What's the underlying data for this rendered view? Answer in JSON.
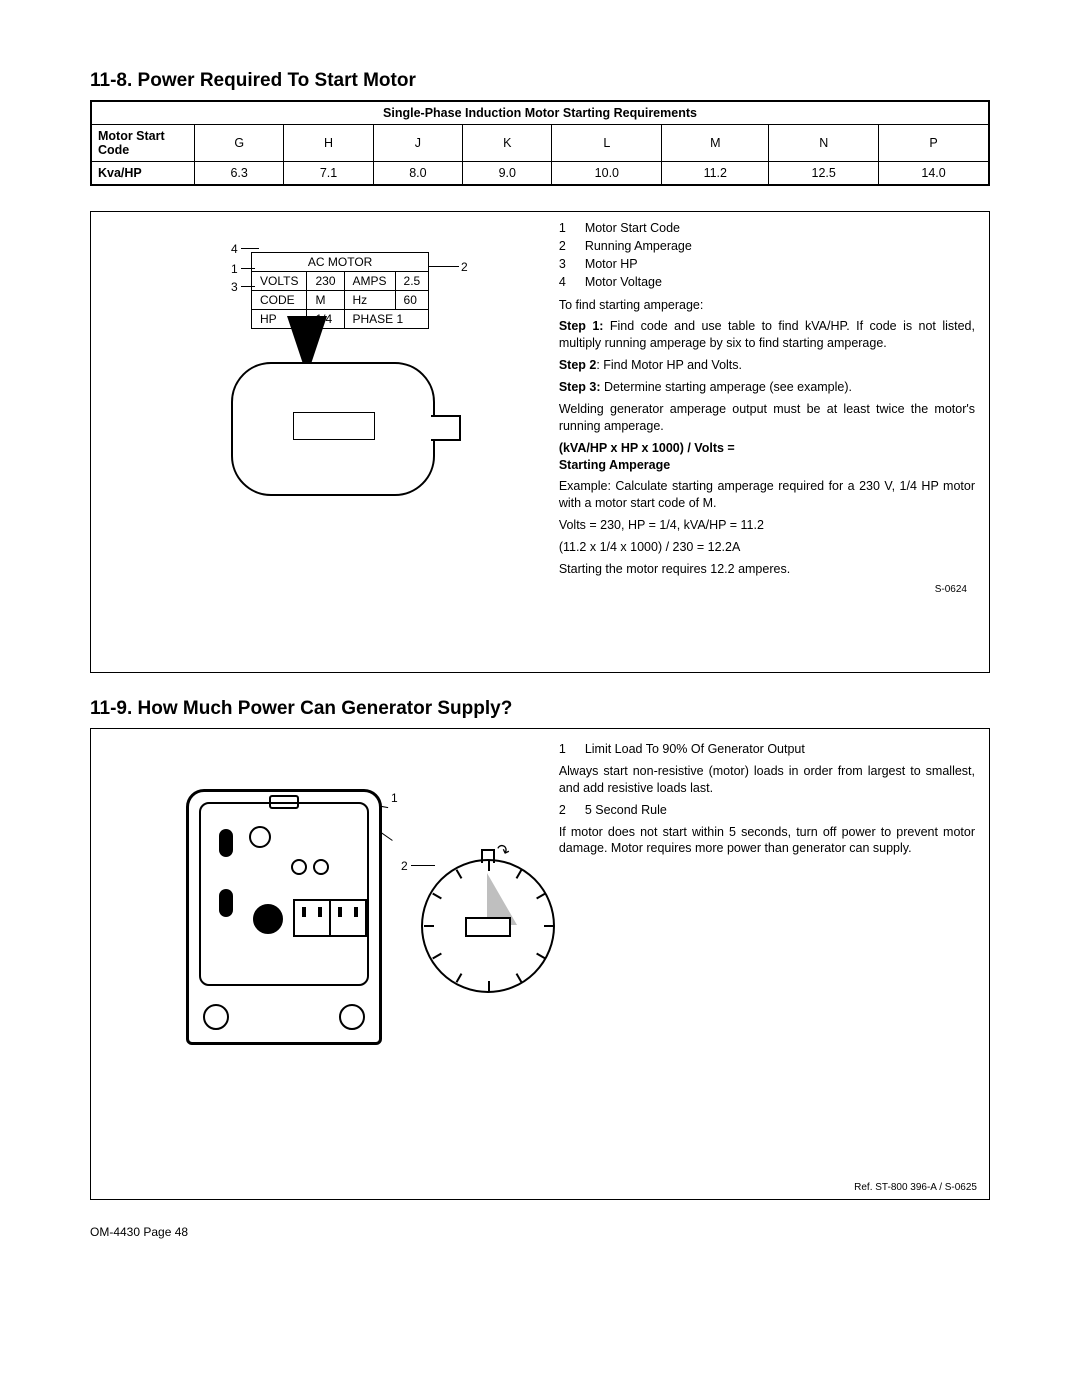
{
  "section118": {
    "heading": "11-8. Power Required To Start Motor",
    "table": {
      "caption": "Single-Phase Induction Motor Starting Requirements",
      "row1_label": "Motor Start Code",
      "row2_label": "Kva/HP",
      "codes": [
        "G",
        "H",
        "J",
        "K",
        "L",
        "M",
        "N",
        "P"
      ],
      "kvahp": [
        "6.3",
        "7.1",
        "8.0",
        "9.0",
        "10.0",
        "11.2",
        "12.5",
        "14.0"
      ]
    },
    "nameplate": {
      "title": "AC MOTOR",
      "r1c1": "VOLTS",
      "r1c2": "230",
      "r1c3": "AMPS",
      "r1c4": "2.5",
      "r2c1": "CODE",
      "r2c2": "M",
      "r2c3": "Hz",
      "r2c4": "60",
      "r3c1": "HP",
      "r3c2": "1/4",
      "r3c3": "PHASE",
      "r3c4": "1"
    },
    "callouts": {
      "n1": "1",
      "n2": "2",
      "n3": "3",
      "n4": "4"
    },
    "legend": [
      {
        "n": "1",
        "t": "Motor Start Code"
      },
      {
        "n": "2",
        "t": "Running Amperage"
      },
      {
        "n": "3",
        "t": "Motor HP"
      },
      {
        "n": "4",
        "t": "Motor Voltage"
      }
    ],
    "intro": "To find starting amperage:",
    "step1_label": "Step 1:",
    "step1_text": " Find code and use table to find kVA/HP. If code is not listed, multiply running amperage by six to find starting amperage.",
    "step2_label": "Step 2",
    "step2_text": ": Find Motor HP and Volts.",
    "step3_label": "Step 3:",
    "step3_text": " Determine starting amperage (see example).",
    "para1": "Welding generator amperage output must be at least twice the motor's running amperage.",
    "formula_l1": "(kVA/HP x HP x 1000) / Volts =",
    "formula_l2": "Starting Amperage",
    "ex1": "Example: Calculate starting amperage required for a 230 V, 1/4 HP motor with a motor start code of M.",
    "ex2": "Volts = 230, HP = 1/4, kVA/HP = 11.2",
    "ex3": "(11.2 x 1/4 x 1000) / 230 = 12.2A",
    "ex4": "Starting the motor requires 12.2 amperes.",
    "figref": "S-0624"
  },
  "section119": {
    "heading": "11-9. How Much Power Can Generator Supply?",
    "item1_n": "1",
    "item1_t": "Limit Load To 90% Of Generator Output",
    "p1": "Always start non-resistive (motor) loads in order from largest to smallest, and add resistive loads last.",
    "item2_n": "2",
    "item2_t": "5 Second Rule",
    "p2": "If motor does not start within 5 seconds, turn off power to prevent motor damage. Motor requires more power than generator can supply.",
    "callouts": {
      "n1": "1",
      "n2": "2"
    },
    "figref": "Ref. ST-800 396-A / S-0625"
  },
  "footer": "OM-4430 Page 48"
}
